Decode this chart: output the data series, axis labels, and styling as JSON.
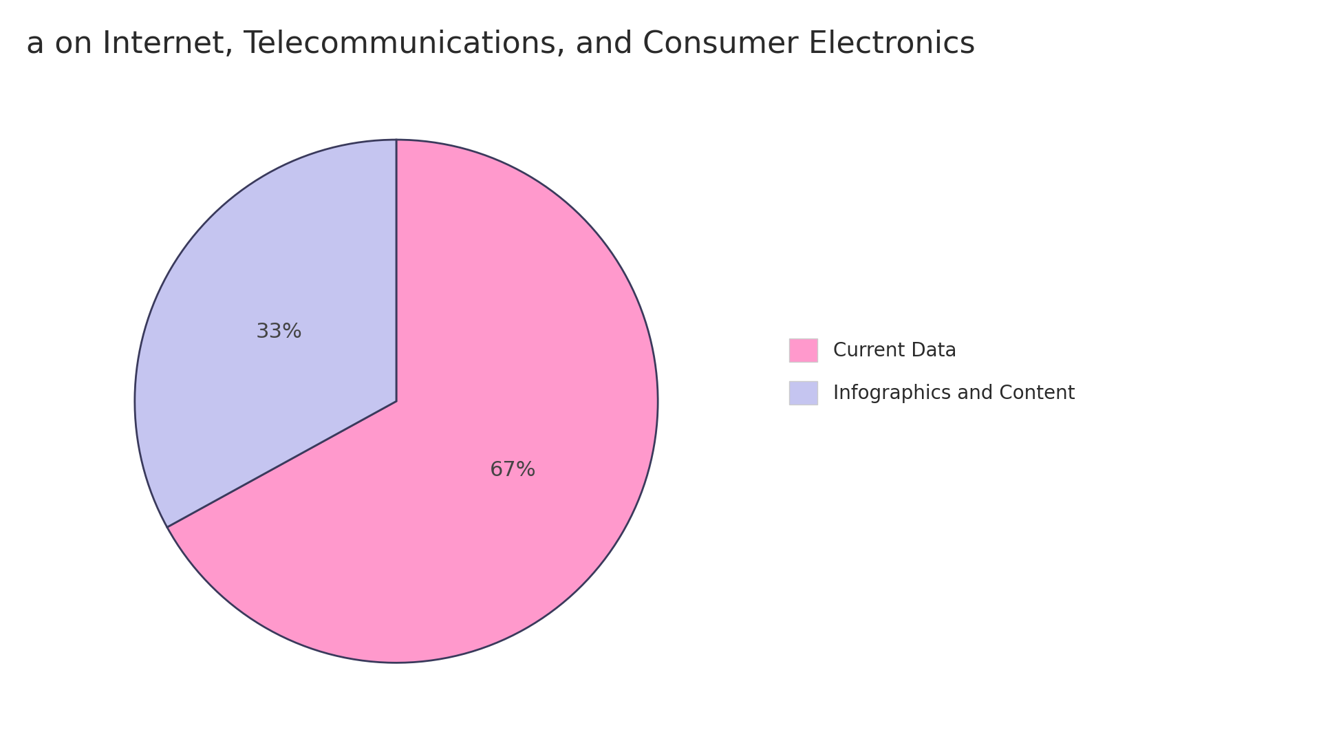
{
  "title": "a on Internet, Telecommunications, and Consumer Electronics",
  "slices": [
    67,
    33
  ],
  "labels": [
    "Current Data",
    "Infographics and Content"
  ],
  "colors": [
    "#FF99CC",
    "#C5C5F0"
  ],
  "edge_color": "#3a3a5c",
  "edge_width": 2.0,
  "pct_fontsize": 22,
  "title_fontsize": 32,
  "title_color": "#2a2a2a",
  "legend_fontsize": 20,
  "background_color": "#ffffff",
  "startangle": 90
}
